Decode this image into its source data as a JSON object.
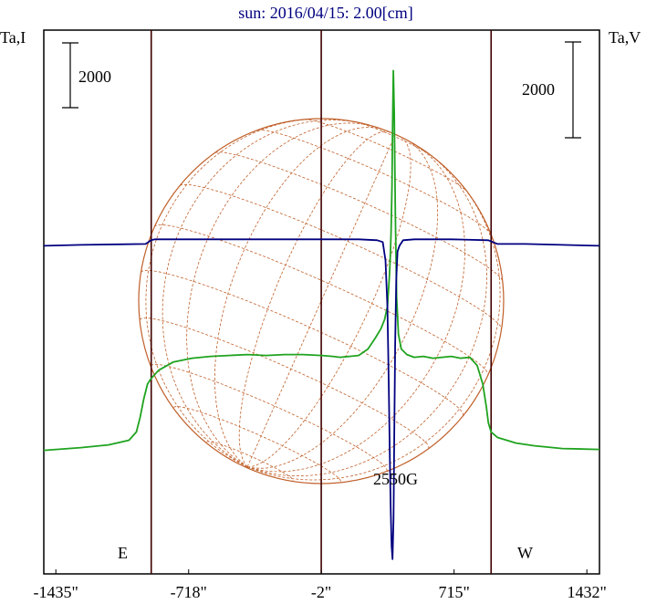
{
  "title": "sun: 2016/04/15: 2.00[cm]",
  "colors": {
    "frame": "#000000",
    "limb": "#400000",
    "disk": "#c0602a",
    "intensity": "#1fa31f",
    "polarization": "#000080",
    "title": "#000080"
  },
  "chart_data": {
    "type": "line",
    "title": "sun: 2016/04/15: 2.00[cm]",
    "xlabel": "",
    "ylabel_left": "Ta,I",
    "ylabel_right": "Ta,V",
    "xlim": [
      -1500,
      1500
    ],
    "x_ticks": [
      {
        "value": -1435,
        "label": "-1435\""
      },
      {
        "value": -718,
        "label": "-718\""
      },
      {
        "value": -2,
        "label": "-2\""
      },
      {
        "value": 715,
        "label": "715\""
      },
      {
        "value": 1432,
        "label": "1432\""
      }
    ],
    "vertical_lines": [
      -920,
      -2,
      915
    ],
    "limb_labels": [
      {
        "x": -920,
        "label": "E"
      },
      {
        "x": 915,
        "label": "W"
      }
    ],
    "scale_bar_left": {
      "label": "2000",
      "value": 2000
    },
    "scale_bar_right": {
      "label": "2000",
      "value": 2000
    },
    "annotation": {
      "label": "2550G",
      "x": 380
    },
    "series": [
      {
        "key": "I",
        "color": "#1fa31f",
        "points": [
          [
            -1500,
            4200
          ],
          [
            -1300,
            4350
          ],
          [
            -1150,
            4500
          ],
          [
            -1040,
            4750
          ],
          [
            -1000,
            5200
          ],
          [
            -980,
            6000
          ],
          [
            -960,
            7000
          ],
          [
            -940,
            7800
          ],
          [
            -920,
            8100
          ],
          [
            -880,
            8550
          ],
          [
            -800,
            9000
          ],
          [
            -700,
            9200
          ],
          [
            -600,
            9300
          ],
          [
            -500,
            9350
          ],
          [
            -400,
            9400
          ],
          [
            -300,
            9350
          ],
          [
            -200,
            9400
          ],
          [
            -100,
            9400
          ],
          [
            0,
            9350
          ],
          [
            60,
            9300
          ],
          [
            100,
            9250
          ],
          [
            150,
            9300
          ],
          [
            200,
            9350
          ],
          [
            250,
            9700
          ],
          [
            290,
            10300
          ],
          [
            320,
            10800
          ],
          [
            340,
            11300
          ],
          [
            355,
            12000
          ],
          [
            365,
            13500
          ],
          [
            370,
            14500
          ],
          [
            375,
            16000
          ],
          [
            380,
            18500
          ],
          [
            383,
            21500
          ],
          [
            387,
            24800
          ],
          [
            392,
            22500
          ],
          [
            398,
            17000
          ],
          [
            405,
            12500
          ],
          [
            415,
            10500
          ],
          [
            430,
            9700
          ],
          [
            460,
            9400
          ],
          [
            500,
            9250
          ],
          [
            550,
            9300
          ],
          [
            600,
            9200
          ],
          [
            650,
            9250
          ],
          [
            700,
            9300
          ],
          [
            750,
            9200
          ],
          [
            800,
            9250
          ],
          [
            840,
            8800
          ],
          [
            870,
            7800
          ],
          [
            890,
            6500
          ],
          [
            900,
            5700
          ],
          [
            915,
            5200
          ],
          [
            950,
            4900
          ],
          [
            1050,
            4600
          ],
          [
            1150,
            4450
          ],
          [
            1300,
            4300
          ],
          [
            1500,
            4250
          ]
        ]
      },
      {
        "key": "V",
        "color": "#000080",
        "points": [
          [
            -1500,
            15300
          ],
          [
            -1300,
            15350
          ],
          [
            -1100,
            15380
          ],
          [
            -950,
            15400
          ],
          [
            -920,
            15600
          ],
          [
            -900,
            15650
          ],
          [
            -700,
            15650
          ],
          [
            -500,
            15650
          ],
          [
            -200,
            15650
          ],
          [
            0,
            15650
          ],
          [
            200,
            15650
          ],
          [
            300,
            15600
          ],
          [
            330,
            15500
          ],
          [
            345,
            14500
          ],
          [
            355,
            12000
          ],
          [
            362,
            8000
          ],
          [
            368,
            4000
          ],
          [
            373,
            1000
          ],
          [
            378,
            -1000
          ],
          [
            383,
            -1700
          ],
          [
            388,
            500
          ],
          [
            392,
            5000
          ],
          [
            397,
            10000
          ],
          [
            403,
            13500
          ],
          [
            410,
            15000
          ],
          [
            420,
            15300
          ],
          [
            440,
            15600
          ],
          [
            500,
            15650
          ],
          [
            700,
            15650
          ],
          [
            900,
            15600
          ],
          [
            950,
            15400
          ],
          [
            1100,
            15400
          ],
          [
            1300,
            15350
          ],
          [
            1500,
            15300
          ]
        ]
      }
    ],
    "grid": false,
    "legend": "none"
  }
}
